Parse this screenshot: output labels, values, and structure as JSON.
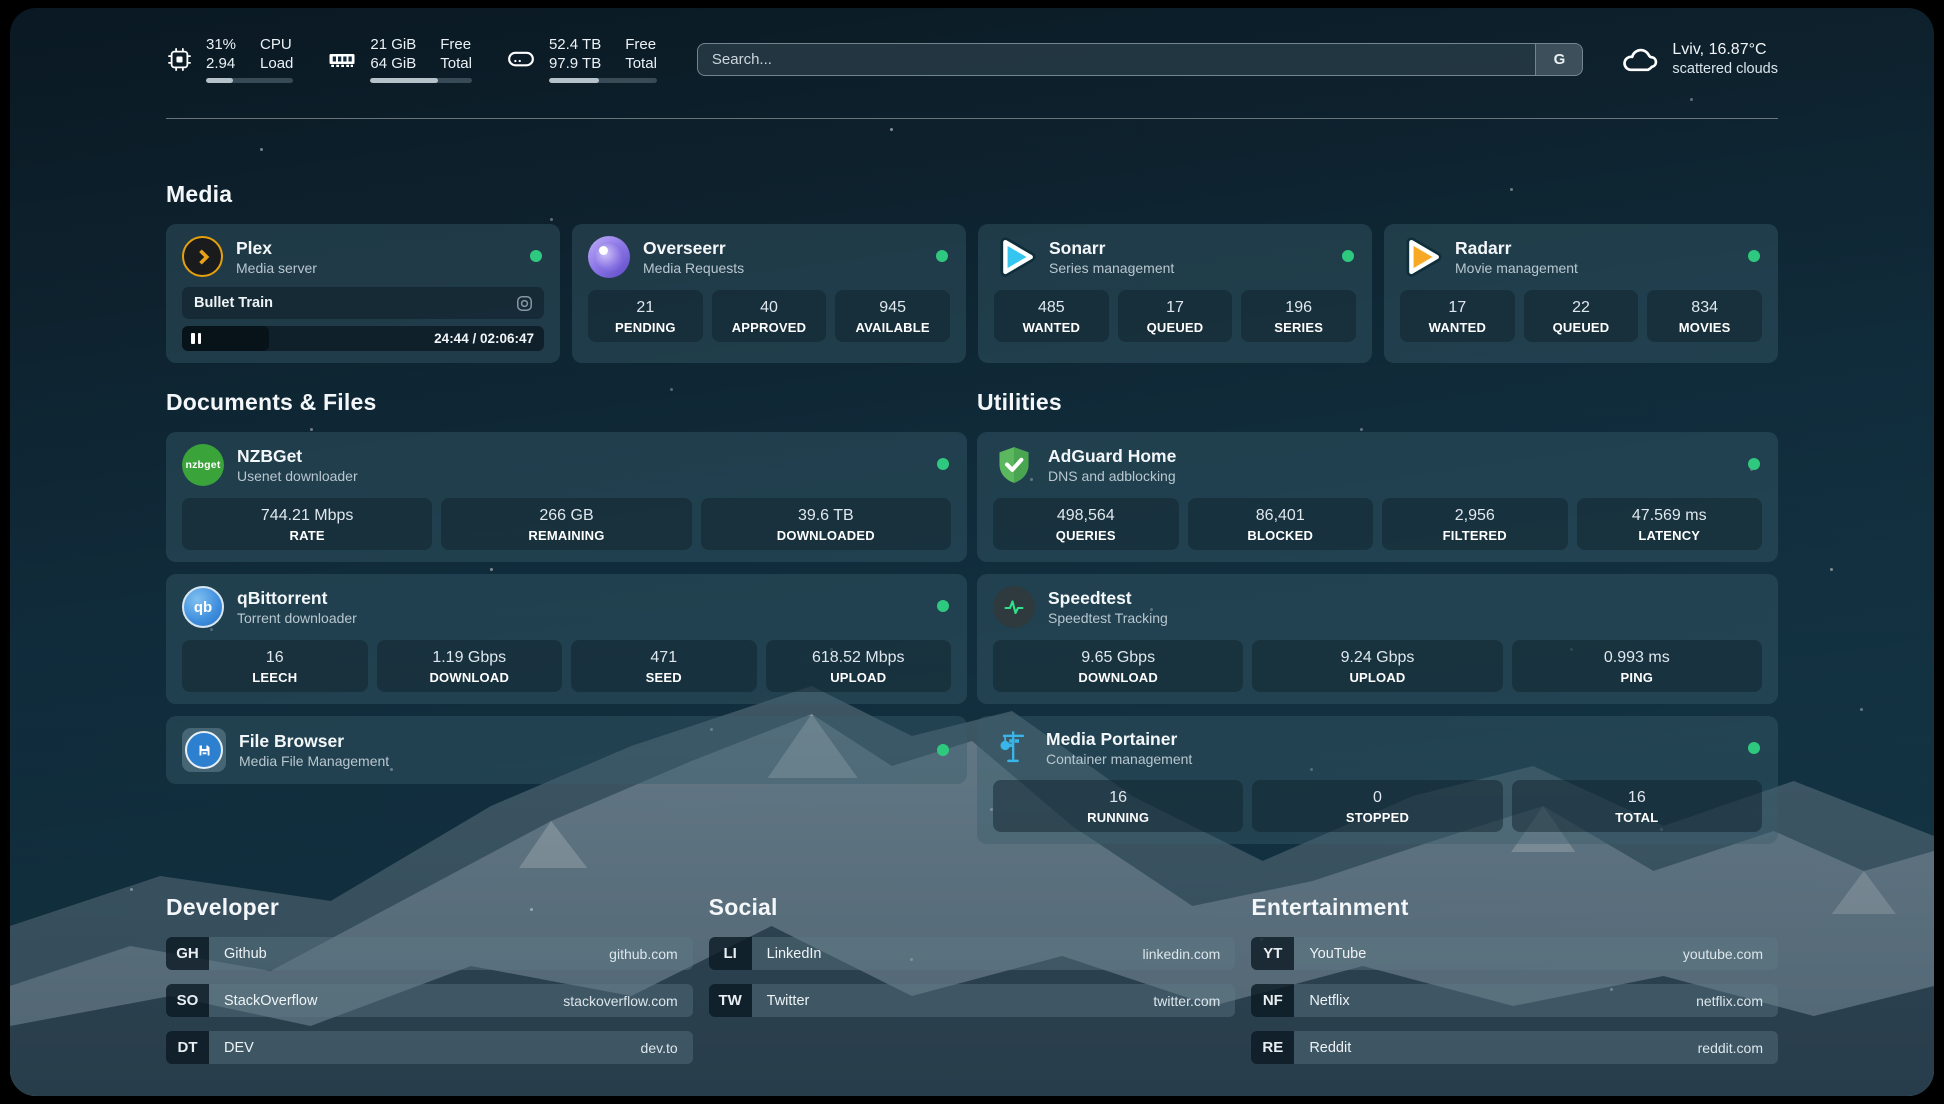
{
  "topbar": {
    "cpu": {
      "values": [
        "31%",
        "2.94"
      ],
      "labels": [
        "CPU",
        "Load"
      ],
      "progress_pct": 31
    },
    "memory": {
      "values": [
        "21 GiB",
        "64 GiB"
      ],
      "labels": [
        "Free",
        "Total"
      ],
      "progress_pct": 67
    },
    "disk": {
      "values": [
        "52.4 TB",
        "97.9 TB"
      ],
      "labels": [
        "Free",
        "Total"
      ],
      "progress_pct": 46
    },
    "search": {
      "placeholder": "Search...",
      "engine_button": "G"
    },
    "weather": {
      "title": "Lviv, 16.87°C",
      "subtitle": "scattered clouds"
    }
  },
  "sections": {
    "media": {
      "title": "Media",
      "apps": {
        "plex": {
          "title": "Plex",
          "subtitle": "Media server",
          "now_playing": {
            "title": "Bullet Train",
            "time": "24:44 / 02:06:47"
          }
        },
        "overseerr": {
          "title": "Overseerr",
          "subtitle": "Media Requests",
          "stats": [
            {
              "value": "21",
              "label": "PENDING"
            },
            {
              "value": "40",
              "label": "APPROVED"
            },
            {
              "value": "945",
              "label": "AVAILABLE"
            }
          ]
        },
        "sonarr": {
          "title": "Sonarr",
          "subtitle": "Series management",
          "stats": [
            {
              "value": "485",
              "label": "WANTED"
            },
            {
              "value": "17",
              "label": "QUEUED"
            },
            {
              "value": "196",
              "label": "SERIES"
            }
          ]
        },
        "radarr": {
          "title": "Radarr",
          "subtitle": "Movie management",
          "stats": [
            {
              "value": "17",
              "label": "WANTED"
            },
            {
              "value": "22",
              "label": "QUEUED"
            },
            {
              "value": "834",
              "label": "MOVIES"
            }
          ]
        }
      }
    },
    "documents": {
      "title": "Documents & Files",
      "apps": {
        "nzbget": {
          "title": "NZBGet",
          "subtitle": "Usenet downloader",
          "icon_text": "nzbget",
          "stats": [
            {
              "value": "744.21 Mbps",
              "label": "RATE"
            },
            {
              "value": "266 GB",
              "label": "REMAINING"
            },
            {
              "value": "39.6 TB",
              "label": "DOWNLOADED"
            }
          ]
        },
        "qbittorrent": {
          "title": "qBittorrent",
          "subtitle": "Torrent downloader",
          "icon_text": "qb",
          "stats": [
            {
              "value": "16",
              "label": "LEECH"
            },
            {
              "value": "1.19 Gbps",
              "label": "DOWNLOAD"
            },
            {
              "value": "471",
              "label": "SEED"
            },
            {
              "value": "618.52 Mbps",
              "label": "UPLOAD"
            }
          ]
        },
        "filebrowser": {
          "title": "File Browser",
          "subtitle": "Media File Management"
        }
      }
    },
    "utilities": {
      "title": "Utilities",
      "apps": {
        "adguard": {
          "title": "AdGuard Home",
          "subtitle": "DNS and adblocking",
          "stats": [
            {
              "value": "498,564",
              "label": "QUERIES"
            },
            {
              "value": "86,401",
              "label": "BLOCKED"
            },
            {
              "value": "2,956",
              "label": "FILTERED"
            },
            {
              "value": "47.569 ms",
              "label": "LATENCY"
            }
          ]
        },
        "speedtest": {
          "title": "Speedtest",
          "subtitle": "Speedtest Tracking",
          "stats": [
            {
              "value": "9.65 Gbps",
              "label": "DOWNLOAD"
            },
            {
              "value": "9.24 Gbps",
              "label": "UPLOAD"
            },
            {
              "value": "0.993 ms",
              "label": "PING"
            }
          ]
        },
        "portainer": {
          "title": "Media Portainer",
          "subtitle": "Container management",
          "stats": [
            {
              "value": "16",
              "label": "RUNNING"
            },
            {
              "value": "0",
              "label": "STOPPED"
            },
            {
              "value": "16",
              "label": "TOTAL"
            }
          ]
        }
      }
    },
    "bookmarks": [
      {
        "title": "Developer",
        "items": [
          {
            "abbr": "GH",
            "name": "Github",
            "url": "github.com"
          },
          {
            "abbr": "SO",
            "name": "StackOverflow",
            "url": "stackoverflow.com"
          },
          {
            "abbr": "DT",
            "name": "DEV",
            "url": "dev.to"
          }
        ]
      },
      {
        "title": "Social",
        "items": [
          {
            "abbr": "LI",
            "name": "LinkedIn",
            "url": "linkedin.com"
          },
          {
            "abbr": "TW",
            "name": "Twitter",
            "url": "twitter.com"
          }
        ]
      },
      {
        "title": "Entertainment",
        "items": [
          {
            "abbr": "YT",
            "name": "YouTube",
            "url": "youtube.com"
          },
          {
            "abbr": "NF",
            "name": "Netflix",
            "url": "netflix.com"
          },
          {
            "abbr": "RE",
            "name": "Reddit",
            "url": "reddit.com"
          }
        ]
      }
    ]
  },
  "colors": {
    "status_online": "#2ec97e",
    "plex_accent": "#e5a00d",
    "sonarr_accent": "#35c5f1",
    "radarr_accent": "#f7a825"
  }
}
